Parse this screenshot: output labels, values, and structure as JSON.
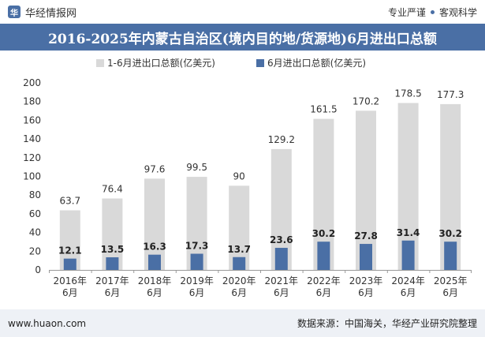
{
  "header": {
    "site_name": "华经情报网",
    "tag_left": "专业严谨",
    "tag_right": "客观科学"
  },
  "title": "2016-2025年内蒙古自治区(境内目的地/货源地)6月进出口总额",
  "footer": {
    "url": "www.huaon.com",
    "source": "数据来源：中国海关，华经产业研究院整理"
  },
  "chart_data": {
    "type": "bar",
    "categories": [
      "2016年\n6月",
      "2017年\n6月",
      "2018年\n6月",
      "2019年\n6月",
      "2020年\n6月",
      "2021年\n6月",
      "2022年\n6月",
      "2023年\n6月",
      "2024年\n6月",
      "2025年\n6月"
    ],
    "series": [
      {
        "name": "1-6月进出口总额(亿美元)",
        "values": [
          63.7,
          76.4,
          97.6,
          99.5,
          90,
          129.2,
          161.5,
          170.2,
          178.5,
          177.3
        ],
        "color": "#d9d9d9"
      },
      {
        "name": "6月进出口总额(亿美元)",
        "values": [
          12.1,
          13.5,
          16.3,
          17.3,
          13.7,
          23.6,
          30.2,
          27.8,
          31.4,
          30.2
        ],
        "color": "#4a6fa5"
      }
    ],
    "ylim": [
      0,
      200
    ],
    "yticks": [
      0,
      20,
      40,
      60,
      80,
      100,
      120,
      140,
      160,
      180,
      200
    ],
    "legend_position": "top-left",
    "overlap": true
  }
}
